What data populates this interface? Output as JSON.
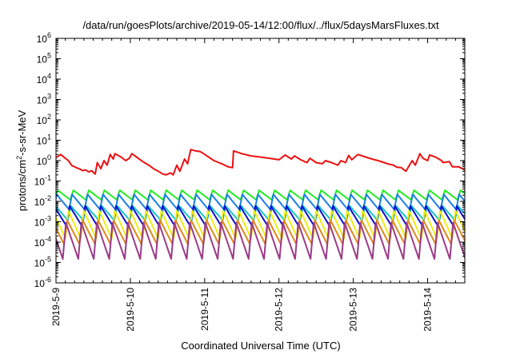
{
  "chart_data": {
    "type": "line",
    "title": "/data/run/goesPlots/archive/2019-05-14/12:00/flux/../flux/5daysMarsFluxes.txt",
    "xlabel": "Coordinated Universal Time (UTC)",
    "ylabel": {
      "base": "protons/cm",
      "sup": "2",
      "rest": "-s-sr-MeV"
    },
    "yscale": "log",
    "ylim": [
      1e-06,
      1000000.0
    ],
    "yticks": [
      {
        "base": "10",
        "exp": "-6",
        "value": 1e-06
      },
      {
        "base": "10",
        "exp": "-5",
        "value": 1e-05
      },
      {
        "base": "10",
        "exp": "-4",
        "value": 0.0001
      },
      {
        "base": "10",
        "exp": "-3",
        "value": 0.001
      },
      {
        "base": "10",
        "exp": "-2",
        "value": 0.01
      },
      {
        "base": "10",
        "exp": "-1",
        "value": 0.1
      },
      {
        "base": "10",
        "exp": "0",
        "value": 1.0
      },
      {
        "base": "10",
        "exp": "1",
        "value": 10.0
      },
      {
        "base": "10",
        "exp": "2",
        "value": 100.0
      },
      {
        "base": "10",
        "exp": "3",
        "value": 1000.0
      },
      {
        "base": "10",
        "exp": "4",
        "value": 10000.0
      },
      {
        "base": "10",
        "exp": "5",
        "value": 100000.0
      },
      {
        "base": "10",
        "exp": "6",
        "value": 1000000.0
      }
    ],
    "xlim": [
      "2019-05-09",
      "2019-05-14T12:00"
    ],
    "xticks": [
      "2019-5-9",
      "2019-5-10",
      "2019-5-11",
      "2019-5-12",
      "2019-5-13",
      "2019-5-14"
    ],
    "xtick_dates": [
      "2019-05-09",
      "2019-05-10",
      "2019-05-11",
      "2019-05-12",
      "2019-05-13",
      "2019-05-14"
    ],
    "grid": false,
    "legend": "none",
    "series": [
      {
        "color": "#ee1111",
        "x": [
          "2019-05-09T00:00",
          "2019-05-09T01:30",
          "2019-05-09T04:00",
          "2019-05-09T05:00",
          "2019-05-09T06:30",
          "2019-05-09T07:30",
          "2019-05-09T08:40",
          "2019-05-09T09:30",
          "2019-05-09T10:40",
          "2019-05-09T11:30",
          "2019-05-09T12:40",
          "2019-05-09T13:20",
          "2019-05-09T14:30",
          "2019-05-09T15:30",
          "2019-05-09T16:30",
          "2019-05-09T17:30",
          "2019-05-09T18:30",
          "2019-05-09T19:00",
          "2019-05-09T21:00",
          "2019-05-09T22:30",
          "2019-05-09T23:40",
          "2019-05-10T00:30",
          "2019-05-10T02:00",
          "2019-05-10T04:00",
          "2019-05-10T06:00",
          "2019-05-10T07:30",
          "2019-05-10T09:00",
          "2019-05-10T10:30",
          "2019-05-10T11:30",
          "2019-05-10T13:00",
          "2019-05-10T13:50",
          "2019-05-10T15:00",
          "2019-05-10T16:00",
          "2019-05-10T17:30",
          "2019-05-10T18:30",
          "2019-05-10T19:30",
          "2019-05-10T21:00",
          "2019-05-10T22:30",
          "2019-05-10T23:40",
          "2019-05-11T01:00",
          "2019-05-11T03:00",
          "2019-05-11T05:30",
          "2019-05-11T07:30",
          "2019-05-11T09:00",
          "2019-05-11T09:20",
          "2019-05-11T12:00",
          "2019-05-11T15:00",
          "2019-05-11T18:00",
          "2019-05-11T21:00",
          "2019-05-12T00:00",
          "2019-05-12T02:00",
          "2019-05-12T04:00",
          "2019-05-12T05:00",
          "2019-05-12T07:00",
          "2019-05-12T09:00",
          "2019-05-12T10:00",
          "2019-05-12T12:00",
          "2019-05-12T14:00",
          "2019-05-12T15:00",
          "2019-05-12T17:00",
          "2019-05-12T19:00",
          "2019-05-12T20:00",
          "2019-05-12T21:30",
          "2019-05-12T22:30",
          "2019-05-12T23:30",
          "2019-05-13T01:30",
          "2019-05-13T04:00",
          "2019-05-13T06:00",
          "2019-05-13T08:00",
          "2019-05-13T10:00",
          "2019-05-13T11:00",
          "2019-05-13T13:00",
          "2019-05-13T14:00",
          "2019-05-13T15:30",
          "2019-05-13T17:00",
          "2019-05-13T19:00",
          "2019-05-13T20:00",
          "2019-05-13T21:30",
          "2019-05-13T22:30",
          "2019-05-14T00:00",
          "2019-05-14T00:40",
          "2019-05-14T02:30",
          "2019-05-14T04:30",
          "2019-05-14T05:00",
          "2019-05-14T07:00",
          "2019-05-14T08:00",
          "2019-05-14T10:00",
          "2019-05-14T12:00"
        ],
        "values": [
          1.4,
          2.0,
          1.0,
          0.6,
          0.45,
          0.4,
          0.32,
          0.35,
          0.28,
          0.32,
          0.22,
          0.8,
          0.4,
          1.0,
          0.6,
          2.0,
          1.2,
          2.2,
          1.5,
          1.0,
          1.3,
          2.2,
          1.5,
          0.9,
          0.6,
          0.4,
          0.3,
          0.22,
          0.2,
          0.25,
          0.2,
          0.6,
          0.3,
          1.2,
          0.7,
          3.5,
          3.0,
          2.8,
          2.2,
          1.6,
          1.0,
          0.7,
          0.5,
          0.45,
          3.0,
          2.2,
          1.7,
          1.5,
          1.3,
          1.1,
          1.9,
          1.2,
          1.7,
          1.1,
          0.8,
          1.3,
          0.8,
          0.7,
          1.0,
          0.8,
          0.6,
          1.0,
          0.8,
          1.8,
          1.1,
          2.0,
          1.5,
          1.2,
          1.0,
          0.8,
          0.7,
          0.6,
          0.48,
          0.45,
          0.3,
          1.0,
          0.6,
          2.2,
          1.3,
          1.0,
          1.9,
          1.5,
          1.0,
          0.8,
          0.9,
          0.5,
          0.5,
          0.35
        ]
      },
      {
        "color": "#22ee22",
        "peak": 0.035,
        "trough": 0.012,
        "period_hours": 5
      },
      {
        "color": "#1a7fe8",
        "peak": 0.022,
        "trough": 0.004,
        "period_hours": 5
      },
      {
        "color": "#11c8c8",
        "peak": 0.006,
        "trough": 0.0012,
        "period_hours": 5
      },
      {
        "color": "#1010cc",
        "peak": 0.006,
        "trough": 0.0006,
        "period_hours": 5
      },
      {
        "color": "#eeee11",
        "peak": 0.0035,
        "trough": 0.00015,
        "period_hours": 5
      },
      {
        "color": "#e08a1a",
        "peak": 0.0012,
        "trough": 8e-05,
        "period_hours": 5
      },
      {
        "color": "#9b3b88",
        "peak": 0.0009,
        "trough": 1.5e-05,
        "period_hours": 5
      }
    ]
  }
}
